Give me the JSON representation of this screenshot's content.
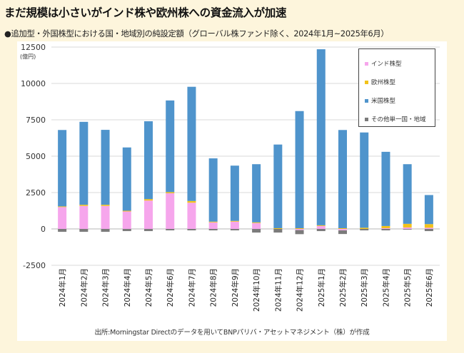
{
  "title": "まだ規模は小さいがインド株や欧州株への資金流入が加速",
  "subtitle": "●追加型・外国株型における国・地域別の純設定額（グローバル株ファンド除く、2024年1月~2025年6月）",
  "source": "出所:Morningstar Directのデータを用いてBNPパリバ・アセットマネジメント（株）が作成",
  "chart_data": {
    "type": "bar",
    "stacked": true,
    "title": "まだ規模は小さいがインド株や欧州株への資金流入が加速",
    "ylabel": "(億円)",
    "xlabel": "",
    "ylim": [
      -2500,
      12500
    ],
    "yticks": [
      -2500,
      0,
      2500,
      5000,
      7500,
      10000,
      12500
    ],
    "ytick_labels": [
      "-2500",
      "0",
      "2500",
      "5000",
      "7500",
      "10000",
      "12500"
    ],
    "grid": true,
    "legend_position": "top-right",
    "categories": [
      "2024年1月",
      "2024年2月",
      "2024年3月",
      "2024年4月",
      "2024年5月",
      "2024年6月",
      "2024年7月",
      "2024年8月",
      "2024年9月",
      "2024年10月",
      "2024年11月",
      "2024年12月",
      "2025年1月",
      "2025年2月",
      "2025年3月",
      "2025年4月",
      "2025年5月",
      "2025年6月"
    ],
    "series": [
      {
        "name": "インド株型",
        "color": "#f6a6ec",
        "values": [
          1500,
          1580,
          1580,
          1200,
          1950,
          2450,
          1800,
          450,
          500,
          400,
          0,
          -80,
          200,
          -100,
          0,
          50,
          100,
          80
        ]
      },
      {
        "name": "欧州株型",
        "color": "#f2c21a",
        "values": [
          50,
          80,
          80,
          50,
          100,
          80,
          120,
          50,
          50,
          50,
          50,
          50,
          50,
          50,
          80,
          150,
          250,
          250
        ]
      },
      {
        "name": "米国株型",
        "color": "#4f94cc",
        "values": [
          5250,
          5700,
          5150,
          4350,
          5350,
          6300,
          7850,
          4350,
          3800,
          4000,
          5750,
          8050,
          12100,
          6750,
          6550,
          5100,
          4100,
          2000
        ]
      },
      {
        "name": "その他単一国・地域",
        "color": "#7b7b7b",
        "values": [
          -200,
          -200,
          -200,
          -150,
          -150,
          -100,
          -100,
          -100,
          -100,
          -250,
          -250,
          -280,
          -150,
          -250,
          -100,
          -100,
          -50,
          -150
        ]
      }
    ]
  }
}
